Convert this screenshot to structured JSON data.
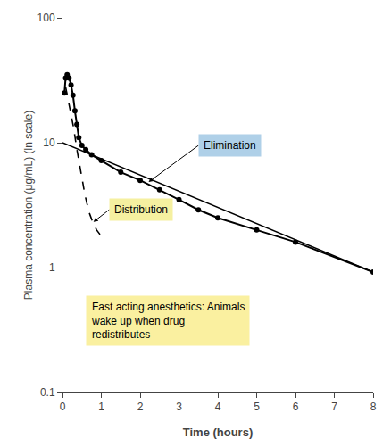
{
  "chart_data": {
    "type": "line",
    "xlabel": "Time (hours)",
    "ylabel": "Plasma concentration (μg/mL) (ln scale)",
    "xlim": [
      0,
      8
    ],
    "ylim": [
      0.1,
      100
    ],
    "xticks": [
      0,
      1,
      2,
      3,
      4,
      5,
      6,
      7,
      8
    ],
    "yticks": [
      0.1,
      1,
      10,
      100
    ],
    "log": "y",
    "grid": false,
    "series": [
      {
        "x": [
          0,
          8
        ],
        "values": [
          10.0,
          0.92
        ],
        "color": "black",
        "line_style": "solid"
      },
      {
        "x": [
          0.08,
          0.18,
          0.28,
          0.38,
          0.48,
          0.58,
          0.68,
          0.78,
          0.88,
          0.98,
          1.08
        ],
        "values": [
          28.0,
          20.0,
          13.5,
          8.5,
          5.5,
          3.8,
          2.8,
          2.3,
          2.0,
          1.8,
          1.65
        ],
        "color": "black",
        "line_style": "dashed"
      },
      {
        "x": [
          0.05,
          0.08,
          0.12,
          0.17,
          0.22,
          0.27,
          0.32,
          0.37,
          0.42,
          0.5,
          0.6,
          0.75,
          1.0,
          1.5,
          2.0,
          2.5,
          3.0,
          3.5,
          4.0,
          5.0,
          6.0,
          8.0
        ],
        "values": [
          25,
          33,
          35,
          33,
          29,
          24,
          18,
          14,
          11,
          9.5,
          8.8,
          8.0,
          7.2,
          5.8,
          5.0,
          4.2,
          3.5,
          2.9,
          2.5,
          2.0,
          1.6,
          0.92
        ],
        "color": "black",
        "line_style": "solid",
        "marker": "circle"
      }
    ],
    "annotations": [
      {
        "text": "Elimination",
        "color": "#afd0e8"
      },
      {
        "text": "Distribution",
        "color": "#f5f0a0"
      },
      {
        "text": "Fast acting anesthetics: Animals\nwake up when drug\nredistributes",
        "color": "#faf0a0"
      }
    ]
  }
}
